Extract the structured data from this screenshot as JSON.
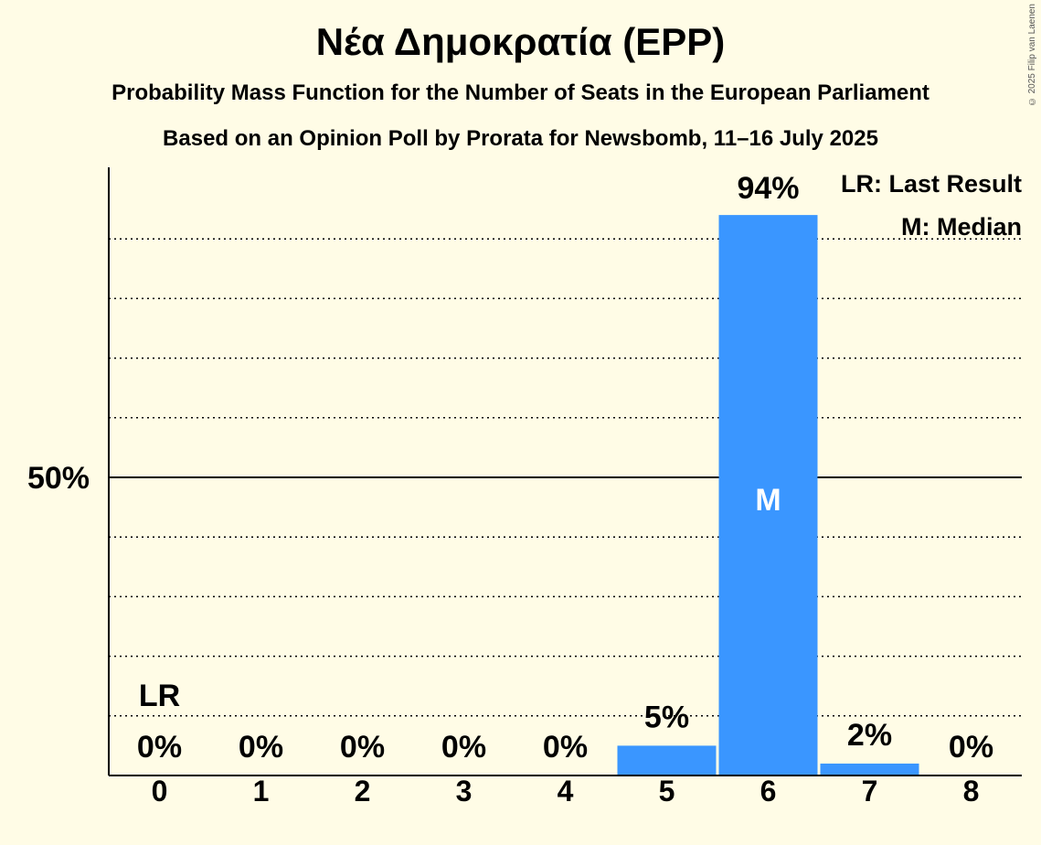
{
  "title": "Νέα Δημοκρατία (EPP)",
  "subtitle1": "Probability Mass Function for the Number of Seats in the European Parliament",
  "subtitle2": "Based on an Opinion Poll by Prorata for Newsbomb, 11–16 July 2025",
  "copyright": "© 2025 Filip van Laenen",
  "legend": {
    "last_result": "LR: Last Result",
    "median": "M: Median"
  },
  "colors": {
    "background": "#fffce6",
    "bar": "#3a96ff",
    "axis": "#000000",
    "grid": "#000000"
  },
  "chart_data": {
    "type": "bar",
    "categories": [
      "0",
      "1",
      "2",
      "3",
      "4",
      "5",
      "6",
      "7",
      "8"
    ],
    "values": [
      0,
      0,
      0,
      0,
      0,
      5,
      94,
      2,
      0
    ],
    "value_labels": [
      "0%",
      "0%",
      "0%",
      "0%",
      "0%",
      "5%",
      "94%",
      "2%",
      "0%"
    ],
    "ylim": [
      0,
      100
    ],
    "y_tick_label": "50%",
    "y_tick_value": 50,
    "gridlines": [
      10,
      20,
      30,
      40,
      60,
      70,
      80,
      90
    ],
    "last_result_seat": "0",
    "last_result_label": "LR",
    "median_seat": "6",
    "median_label": "M",
    "legend_position": "top-right"
  }
}
